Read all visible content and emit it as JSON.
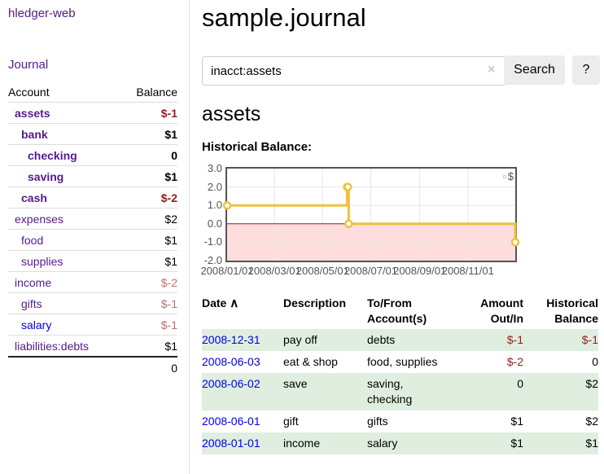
{
  "app": {
    "brand": "hledger-web",
    "nav_journal": "Journal"
  },
  "sidebar": {
    "accounts": {
      "headers": {
        "account": "Account",
        "balance": "Balance"
      },
      "rows": [
        {
          "name": "assets",
          "balance": "$-1"
        },
        {
          "name": "bank",
          "balance": "$1"
        },
        {
          "name": "checking",
          "balance": "0"
        },
        {
          "name": "saving",
          "balance": "$1"
        },
        {
          "name": "cash",
          "balance": "$-2"
        },
        {
          "name": "expenses",
          "balance": "$2"
        },
        {
          "name": "food",
          "balance": "$1"
        },
        {
          "name": "supplies",
          "balance": "$1"
        },
        {
          "name": "income",
          "balance": "$-2"
        },
        {
          "name": "gifts",
          "balance": "$-1"
        },
        {
          "name": "salary",
          "balance": "$-1"
        },
        {
          "name": "liabilities:debts",
          "balance": "$1"
        }
      ],
      "total": "0"
    }
  },
  "main": {
    "title": "sample.journal",
    "search": {
      "value": "inacct:assets",
      "clear_icon": "×",
      "button_label": "Search",
      "help_label": "?"
    },
    "account_heading": "assets",
    "chart_label": "Historical Balance:"
  },
  "chart_data": {
    "type": "line",
    "title": "Historical Balance",
    "legend": [
      {
        "label": "$",
        "color": "#edc240"
      }
    ],
    "legend_position": "top-right",
    "grid": true,
    "x_range": [
      "2008/01/01",
      "2008/12/31"
    ],
    "ylim": [
      -2,
      3
    ],
    "ytick_values": [
      3,
      2,
      1,
      0,
      -1,
      -2
    ],
    "ytick_labels": [
      "3.0",
      "2.0",
      "1.0",
      "0.0",
      "-1.0",
      "-2.0"
    ],
    "xticks": [
      {
        "date": "2008/01/01",
        "label": "2008/01/01"
      },
      {
        "date": "2008/03/01",
        "label": "2008/03/01"
      },
      {
        "date": "2008/05/01",
        "label": "2008/05/01"
      },
      {
        "date": "2008/07/01",
        "label": "2008/07/01"
      },
      {
        "date": "2008/09/01",
        "label": "2008/09/01"
      },
      {
        "date": "2008/11/01",
        "label": "2008/11/01"
      }
    ],
    "series": [
      {
        "name": "$",
        "color": "#edc240",
        "style": "step",
        "points": [
          {
            "date": "2008/01/01",
            "value": 1
          },
          {
            "date": "2008/06/01",
            "value": 2
          },
          {
            "date": "2008/06/02",
            "value": 2
          },
          {
            "date": "2008/06/03",
            "value": 0
          },
          {
            "date": "2008/12/31",
            "value": -1
          }
        ]
      }
    ],
    "colors": {
      "grid": "#e6e6e6",
      "border": "#545454",
      "negative_region": "#ffdddd",
      "zero_line": "#8b1a1a"
    }
  },
  "register": {
    "headers": {
      "date": "Date",
      "sort_icon": "∧",
      "description": "Description",
      "accounts_line1": "To/From",
      "accounts_line2": "Account(s)",
      "amount_line1": "Amount",
      "amount_line2": "Out/In",
      "balance_line1": "Historical",
      "balance_line2": "Balance"
    },
    "rows": [
      {
        "date": "2008-12-31",
        "description": "pay off",
        "accounts": "debts",
        "amount": "$-1",
        "balance": "$-1"
      },
      {
        "date": "2008-06-03",
        "description": "eat & shop",
        "accounts": "food, supplies",
        "amount": "$-2",
        "balance": "0"
      },
      {
        "date": "2008-06-02",
        "description": "save",
        "accounts": "saving, checking",
        "amount": "0",
        "balance": "$2"
      },
      {
        "date": "2008-06-01",
        "description": "gift",
        "accounts": "gifts",
        "amount": "$1",
        "balance": "$2"
      },
      {
        "date": "2008-01-01",
        "description": "income",
        "accounts": "salary",
        "amount": "$1",
        "balance": "$1"
      }
    ]
  }
}
